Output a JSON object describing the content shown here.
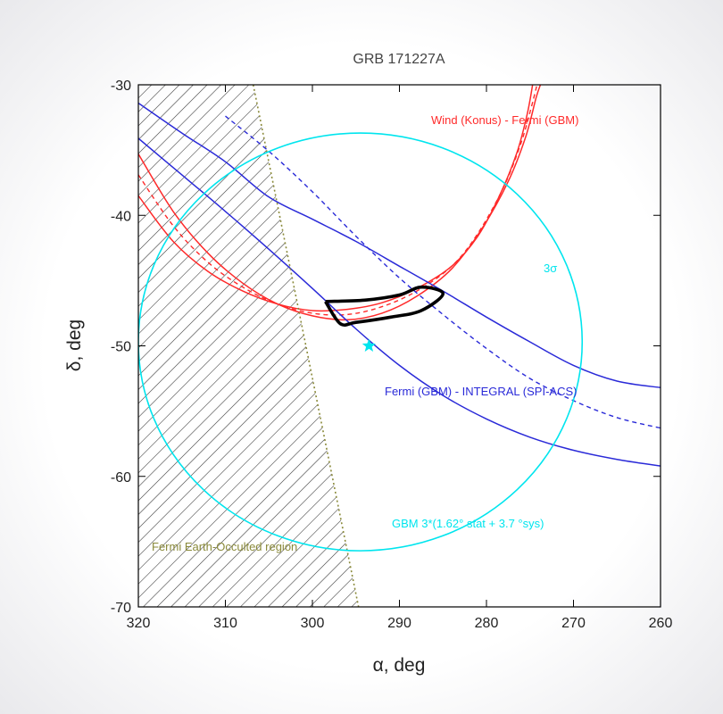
{
  "chart_data": {
    "type": "line",
    "title": "GRB 171227A",
    "xlabel": "α, deg",
    "ylabel": "δ, deg",
    "xlim": [
      320,
      260
    ],
    "ylim": [
      -70,
      -30
    ],
    "x_ticks": [
      320,
      310,
      300,
      290,
      280,
      270,
      260
    ],
    "y_ticks": [
      -70,
      -60,
      -50,
      -40,
      -30
    ],
    "grid": false,
    "colors": {
      "konus_gbm": "#ff2a2a",
      "gbm_spi": "#2a2ad8",
      "gbm_circle": "#00e5ee",
      "occulted": "#8a8a3a",
      "localization": "#000000",
      "star": "#00e5ee"
    },
    "annotations": {
      "konus_gbm": "Wind (Konus) - Fermi (GBM)",
      "three_sigma": "3σ",
      "gbm_spi": "Fermi (GBM) - INTEGRAL (SPI-ACS)",
      "gbm_error": "GBM 3*(1.62° stat + 3.7 °sys)",
      "occulted": "Fermi Earth-Occulted region"
    },
    "series": [
      {
        "key": "konus_inner",
        "style": "solid",
        "points": [
          [
            320,
            -38.5
          ],
          [
            316,
            -42.0
          ],
          [
            312,
            -44.3
          ],
          [
            308,
            -45.8
          ],
          [
            304,
            -46.8
          ],
          [
            300,
            -47.3
          ],
          [
            296,
            -47.2
          ],
          [
            292,
            -46.7
          ],
          [
            288,
            -45.6
          ],
          [
            284,
            -43.9
          ],
          [
            281,
            -41.6
          ],
          [
            278.5,
            -38.5
          ],
          [
            276.5,
            -35.2
          ],
          [
            275.3,
            -32.2
          ],
          [
            274.7,
            -30.0
          ]
        ]
      },
      {
        "key": "konus_center",
        "style": "dashed",
        "points": [
          [
            320,
            -36.9
          ],
          [
            316,
            -40.8
          ],
          [
            312,
            -43.6
          ],
          [
            308,
            -45.5
          ],
          [
            304,
            -46.8
          ],
          [
            300,
            -47.5
          ],
          [
            296,
            -47.6
          ],
          [
            292,
            -47.0
          ],
          [
            288,
            -45.8
          ],
          [
            284,
            -43.9
          ],
          [
            281,
            -41.4
          ],
          [
            278,
            -37.8
          ],
          [
            276,
            -34.4
          ],
          [
            274.8,
            -31.6
          ],
          [
            274.2,
            -30.0
          ]
        ]
      },
      {
        "key": "konus_outer",
        "style": "solid",
        "points": [
          [
            320,
            -35.3
          ],
          [
            316,
            -39.7
          ],
          [
            312,
            -42.9
          ],
          [
            308,
            -45.2
          ],
          [
            304,
            -46.8
          ],
          [
            300,
            -47.7
          ],
          [
            296,
            -48.0
          ],
          [
            292,
            -47.5
          ],
          [
            288,
            -46.2
          ],
          [
            284,
            -44.1
          ],
          [
            280.5,
            -41.0
          ],
          [
            277.5,
            -37.4
          ],
          [
            275.5,
            -34.0
          ],
          [
            274.3,
            -31.0
          ],
          [
            273.8,
            -30.0
          ]
        ]
      },
      {
        "key": "gbm_spi_upper",
        "style": "solid",
        "points": [
          [
            320,
            -31.4
          ],
          [
            315,
            -33.7
          ],
          [
            310,
            -35.9
          ],
          [
            305,
            -38.6
          ],
          [
            300,
            -40.3
          ],
          [
            295,
            -42.0
          ],
          [
            290,
            -43.9
          ],
          [
            285,
            -45.8
          ],
          [
            280,
            -47.8
          ],
          [
            275,
            -49.7
          ],
          [
            270,
            -51.5
          ],
          [
            265,
            -52.7
          ],
          [
            260,
            -53.2
          ]
        ]
      },
      {
        "key": "gbm_spi_center",
        "style": "dashed",
        "points": [
          [
            310,
            -32.4
          ],
          [
            305,
            -35.1
          ],
          [
            300,
            -38.2
          ],
          [
            295,
            -41.6
          ],
          [
            290,
            -44.8
          ],
          [
            285,
            -47.6
          ],
          [
            280,
            -50.2
          ],
          [
            275,
            -52.5
          ],
          [
            270,
            -54.2
          ],
          [
            265,
            -55.5
          ],
          [
            260,
            -56.3
          ]
        ]
      },
      {
        "key": "gbm_spi_lower",
        "style": "solid",
        "points": [
          [
            320,
            -34.1
          ],
          [
            315,
            -36.9
          ],
          [
            310,
            -39.7
          ],
          [
            305,
            -42.6
          ],
          [
            300,
            -45.6
          ],
          [
            295,
            -48.7
          ],
          [
            290,
            -51.5
          ],
          [
            285,
            -53.8
          ],
          [
            280,
            -55.6
          ],
          [
            275,
            -57.0
          ],
          [
            270,
            -58.0
          ],
          [
            265,
            -58.7
          ],
          [
            260,
            -59.2
          ]
        ]
      },
      {
        "key": "occultation_edge",
        "style": "dotted",
        "points": [
          [
            306.8,
            -30.0
          ],
          [
            294.7,
            -70.0
          ]
        ]
      },
      {
        "key": "localization_box",
        "style": "thick",
        "points": [
          [
            298.5,
            -46.6
          ],
          [
            294,
            -46.5
          ],
          [
            290,
            -46.1
          ],
          [
            287.5,
            -45.5
          ],
          [
            285,
            -46.0
          ],
          [
            287.5,
            -47.3
          ],
          [
            291,
            -47.8
          ],
          [
            295,
            -48.2
          ],
          [
            296.8,
            -48.3
          ],
          [
            298.5,
            -46.6
          ]
        ]
      }
    ],
    "gbm_circle": {
      "center": [
        294.5,
        -49.7
      ],
      "ra_halfwidth": 25.5,
      "dec_halfwidth": 16.0
    },
    "gbm_best_position": [
      293.5,
      -50.0
    ]
  }
}
